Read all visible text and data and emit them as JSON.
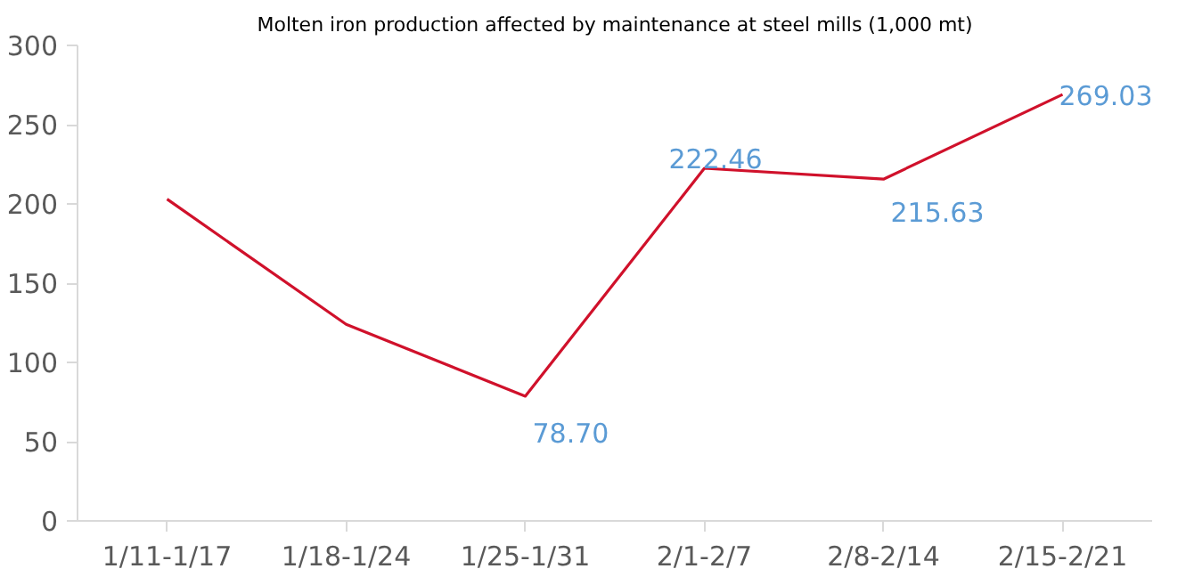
{
  "chart_data": {
    "type": "line",
    "title": "Molten iron production affected by maintenance at steel mills (1,000 mt)",
    "categories": [
      "1/11-1/17",
      "1/18-1/24",
      "1/25-1/31",
      "2/1-2/7",
      "2/8-2/14",
      "2/15-2/21"
    ],
    "series": [
      {
        "color": "#d0112b",
        "values": [
          203,
          124,
          78.7,
          222.46,
          215.63,
          269.03
        ],
        "value_labels": [
          null,
          null,
          "78.70",
          "222.46",
          "215.63",
          "269.03"
        ]
      }
    ],
    "ylim": [
      0,
      300
    ],
    "yticks": [
      0,
      50,
      100,
      150,
      200,
      250,
      300
    ],
    "grid": false,
    "marker": "none",
    "line_style": "solid"
  }
}
